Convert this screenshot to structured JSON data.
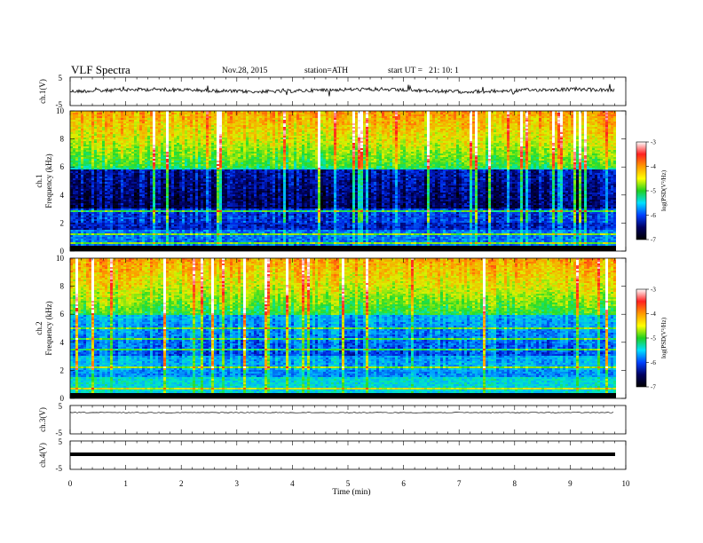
{
  "header": {
    "title": "VLF Spectra",
    "date": "Nov.28, 2015",
    "station": "station=ATH",
    "start": "start UT =   21: 10: 1"
  },
  "colorbar": {
    "label": "log(PSD(V²/Hz)",
    "ticks": [
      "-3",
      "-4",
      "-5",
      "-6",
      "-7"
    ],
    "colors": [
      "#ffffff",
      "#ff2020",
      "#ff9a00",
      "#ffff00",
      "#20d020",
      "#00e0ff",
      "#0040ff",
      "#000060",
      "#000000"
    ]
  },
  "chart_data": [
    {
      "type": "line",
      "panel": "ch1-waveform",
      "ylabel": "ch.1(V)",
      "yticks": [
        "5",
        "-5"
      ],
      "ylim": [
        -5,
        5
      ],
      "baseline": 0,
      "note_visible_trace": "noisy waveform around zero"
    },
    {
      "type": "heatmap",
      "panel": "ch1-spectrogram",
      "ylabel_ch": "ch.1",
      "ylabel": "Frequency (kHz)",
      "yticks": [
        "10",
        "8",
        "6",
        "4",
        "2",
        "0"
      ],
      "ylim": [
        0,
        10
      ],
      "colorscale": "log(PSD(V²/Hz)",
      "zlim": [
        -7,
        -3
      ]
    },
    {
      "type": "heatmap",
      "panel": "ch2-spectrogram",
      "ylabel_ch": "ch.2",
      "ylabel": "Frequency (kHz)",
      "yticks": [
        "10",
        "8",
        "6",
        "4",
        "2",
        "0"
      ],
      "ylim": [
        0,
        10
      ],
      "colorscale": "log(PSD(V²/Hz)",
      "zlim": [
        -7,
        -3
      ]
    },
    {
      "type": "line",
      "panel": "ch3-waveform",
      "ylabel": "ch.3(V)",
      "yticks": [
        "5",
        "-5"
      ],
      "ylim": [
        -5,
        5
      ]
    },
    {
      "type": "line",
      "panel": "ch4-waveform",
      "ylabel": "ch.4(V)",
      "yticks": [
        "5",
        "-5"
      ],
      "ylim": [
        -5,
        5
      ]
    }
  ],
  "xaxis": {
    "xlabel": "Time (min)",
    "ticks": [
      "0",
      "1",
      "2",
      "3",
      "4",
      "5",
      "6",
      "7",
      "8",
      "9",
      "10"
    ],
    "xlim": [
      0,
      10
    ],
    "data_end": 9.8
  }
}
